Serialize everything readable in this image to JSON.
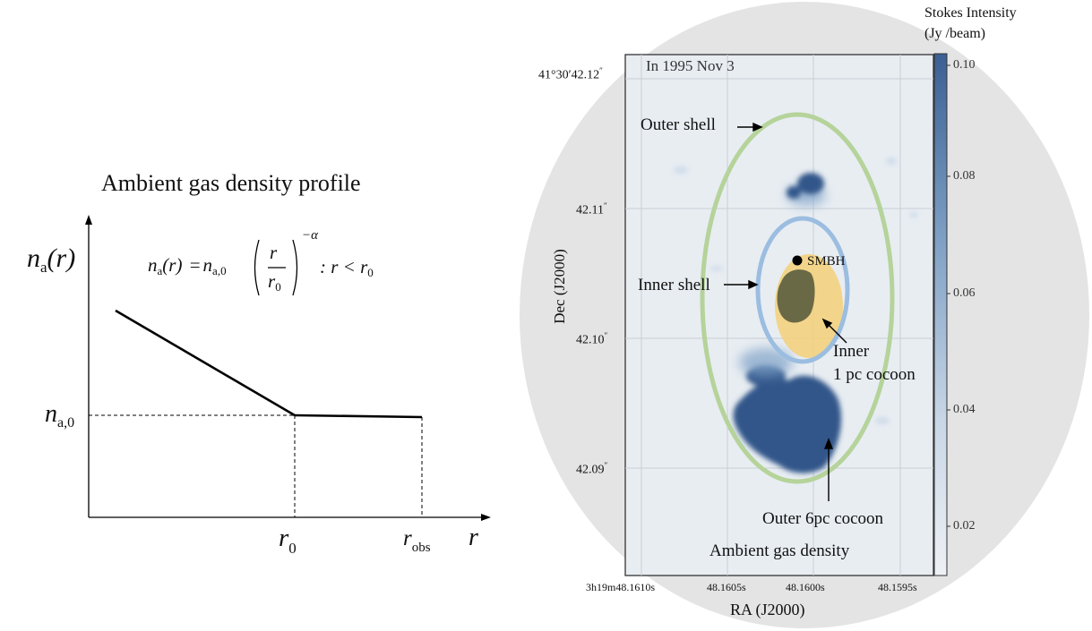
{
  "left_panel": {
    "title": "Ambient gas density profile",
    "y_axis_label": {
      "sym": "n",
      "sub": "a",
      "arg": "(r)"
    },
    "formula": {
      "lhs_sym": "n",
      "lhs_sub": "a",
      "lhs_arg": "(r)",
      "eq": "=",
      "coef_sym": "n",
      "coef_sub": "a,0",
      "frac_num": "r",
      "frac_den_sym": "r",
      "frac_den_sub": "0",
      "exponent": "−α",
      "condition": ": r < r",
      "condition_sub": "0"
    },
    "na0_label": {
      "sym": "n",
      "sub": "a,0"
    },
    "r0_label": {
      "sym": "r",
      "sub": "0"
    },
    "robs_label": {
      "sym": "r",
      "sub": "obs"
    },
    "x_axis_label": "r",
    "profile": {
      "alpha_segment": "power-law decline for r < r0",
      "flat_segment": "constant n_a,0 for r0 < r < r_obs"
    }
  },
  "right_panel": {
    "epoch": "In 1995 Nov 3",
    "dec_axis_label": "Dec (J2000)",
    "ra_axis_label": "RA (J2000)",
    "dec_ticks": [
      {
        "main": "41°30′42.12",
        "sup": "″"
      },
      {
        "main": "42.11",
        "sup": "″"
      },
      {
        "main": "42.10",
        "sup": "″"
      },
      {
        "main": "42.09",
        "sup": "″"
      }
    ],
    "ra_ticks": [
      {
        "label": "3h19m48.1610s"
      },
      {
        "label": "48.1605s"
      },
      {
        "label": "48.1600s"
      },
      {
        "label": "48.1595s"
      }
    ],
    "colorbar": {
      "title_line1": "Stokes Intensity",
      "title_line2": "(Jy /beam)",
      "ticks": [
        "0.10",
        "0.08",
        "0.06",
        "0.04",
        "0.02"
      ],
      "color_high": "#3a5f93",
      "color_low": "#eef1f5"
    },
    "annotations": {
      "outer_shell": "Outer shell",
      "inner_shell": "Inner shell",
      "smbh": "SMBH",
      "inner_cocoon_line1": "Inner",
      "inner_cocoon_line2": "1 pc cocoon",
      "outer_cocoon": "Outer 6pc cocoon",
      "ambient": "Ambient gas density"
    },
    "colors": {
      "outer_shell": "#b5d39a",
      "inner_shell": "#9bbde0",
      "inner_cocoon": "#f3d27e",
      "emission": "#33578a",
      "background_disc": "#e4e4e4"
    }
  }
}
